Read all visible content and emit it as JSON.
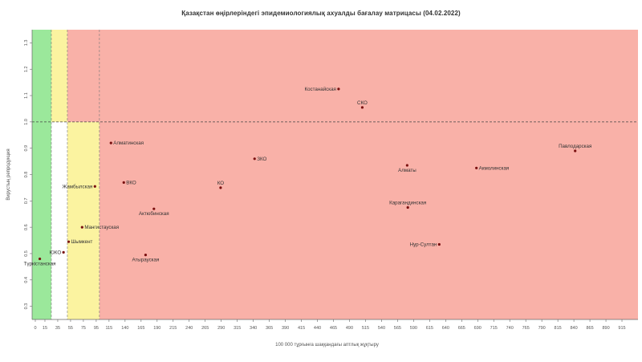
{
  "chart_data": {
    "type": "scatter",
    "title": "Қазақстан өңірлеріндегі эпидемиологиялық ахуалды бағалау матрицасы  (04.02.2022)",
    "xlabel": "100 000 тұрғынға шаққандағы аптлық жұқтыру",
    "ylabel": "Вирустың репродукция",
    "xlim": [
      -5,
      940
    ],
    "ylim": [
      0.25,
      1.35
    ],
    "x_ticks": [
      "0",
      "15",
      "35",
      "55",
      "75",
      "95",
      "115",
      "140",
      "165",
      "190",
      "215",
      "240",
      "265",
      "290",
      "315",
      "340",
      "365",
      "390",
      "415",
      "440",
      "465",
      "490",
      "515",
      "540",
      "565",
      "590",
      "615",
      "640",
      "665",
      "690",
      "715",
      "740",
      "765",
      "790",
      "815",
      "840",
      "865",
      "890",
      "915"
    ],
    "y_ticks": [
      "0.3",
      "0.4",
      "0.5",
      "0.6",
      "0.7",
      "0.8",
      "0.9",
      "1.0",
      "1.1",
      "1.2",
      "1.3"
    ],
    "zones": [
      {
        "name": "green",
        "x_from": -5,
        "x_to": 25,
        "color": "#9be89b"
      },
      {
        "name": "yellow",
        "x_from": 25,
        "x_to": 50,
        "color": "#fbf3a0",
        "y_from": 1.0
      },
      {
        "name": "yellow",
        "x_from": 50,
        "x_to": 100,
        "color": "#fbf3a0",
        "y_to": 1.0
      },
      {
        "name": "red",
        "x_from": 50,
        "x_to": 940,
        "color": "#f9b1a8",
        "y_from": 1.0
      },
      {
        "name": "red",
        "x_from": 100,
        "x_to": 940,
        "color": "#f9b1a8",
        "y_to": 1.0
      }
    ],
    "reference_lines": {
      "horizontal": [
        1.0
      ],
      "vertical": [
        25,
        50,
        100
      ]
    },
    "points": [
      {
        "label": "Түркістанская",
        "x": 7,
        "y": 0.48,
        "label_pos": "below"
      },
      {
        "label": "ЮКО",
        "x": 44,
        "y": 0.505,
        "label_pos": "left"
      },
      {
        "label": "Шымкент",
        "x": 52,
        "y": 0.545,
        "label_pos": "right"
      },
      {
        "label": "Мангистауская",
        "x": 73,
        "y": 0.6,
        "label_pos": "right"
      },
      {
        "label": "Жамбылская",
        "x": 93,
        "y": 0.755,
        "label_pos": "left"
      },
      {
        "label": "Алматинская",
        "x": 118,
        "y": 0.92,
        "label_pos": "right"
      },
      {
        "label": "ВКО",
        "x": 138,
        "y": 0.77,
        "label_pos": "right"
      },
      {
        "label": "Актюбинская",
        "x": 185,
        "y": 0.67,
        "label_pos": "below"
      },
      {
        "label": "Атырауская",
        "x": 172,
        "y": 0.495,
        "label_pos": "below"
      },
      {
        "label": "КО",
        "x": 289,
        "y": 0.75,
        "label_pos": "above"
      },
      {
        "label": "ЗКО",
        "x": 342,
        "y": 0.86,
        "label_pos": "right"
      },
      {
        "label": "Костанайская",
        "x": 473,
        "y": 1.125,
        "label_pos": "left"
      },
      {
        "label": "СКО",
        "x": 510,
        "y": 1.055,
        "label_pos": "above"
      },
      {
        "label": "Алматы",
        "x": 580,
        "y": 0.835,
        "label_pos": "below"
      },
      {
        "label": "Карагандинская",
        "x": 581,
        "y": 0.675,
        "label_pos": "above"
      },
      {
        "label": "Нур-Султан",
        "x": 630,
        "y": 0.535,
        "label_pos": "left"
      },
      {
        "label": "Акмолинская",
        "x": 688,
        "y": 0.825,
        "label_pos": "right"
      },
      {
        "label": "Павлодарская",
        "x": 842,
        "y": 0.89,
        "label_pos": "above"
      }
    ]
  }
}
